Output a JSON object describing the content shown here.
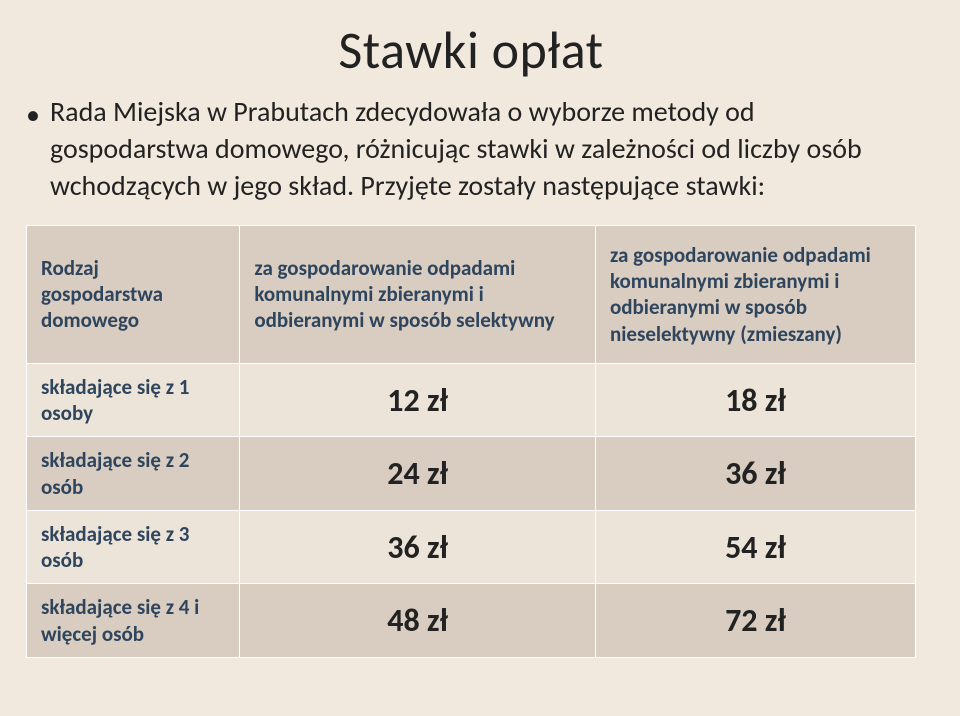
{
  "title": "Stawki opłat",
  "intro": "Rada Miejska w Prabutach zdecydowała o wyborze metody od gospodarstwa domowego, różnicując stawki w zależności od liczby osób wchodzących w jego skład. Przyjęte zostały następujące stawki:",
  "table": {
    "headers": {
      "col1": "Rodzaj gospodarstwa domowego",
      "col2": "za gospodarowanie odpadami komunalnymi zbieranymi i odbieranymi w sposób selektywny",
      "col3": "za gospodarowanie odpadami komunalnymi zbieranymi i odbieranymi w sposób nieselektywny (zmieszany)"
    },
    "rows": [
      {
        "label": "składające się z 1 osoby",
        "sel": "12 zł",
        "unsel": "18 zł"
      },
      {
        "label": "składające się z 2 osób",
        "sel": "24 zł",
        "unsel": "36 zł"
      },
      {
        "label": "składające się z 3 osób",
        "sel": "36 zł",
        "unsel": "54 zł"
      },
      {
        "label": "składające się z 4 i więcej osób",
        "sel": "48 zł",
        "unsel": "72 zł"
      }
    ]
  },
  "colors": {
    "background": "#f2e9de",
    "header_bg": "#d8cdc0",
    "row_odd_bg": "#ece4d8",
    "row_even_bg": "#d8cdc0",
    "header_text": "#2f455e",
    "value_text": "#222222",
    "border": "#ffffff"
  },
  "fonts": {
    "title_size_pt": 40,
    "body_size_pt": 21,
    "value_size_pt": 24,
    "header_size_pt": 16,
    "family": "Calibri"
  }
}
